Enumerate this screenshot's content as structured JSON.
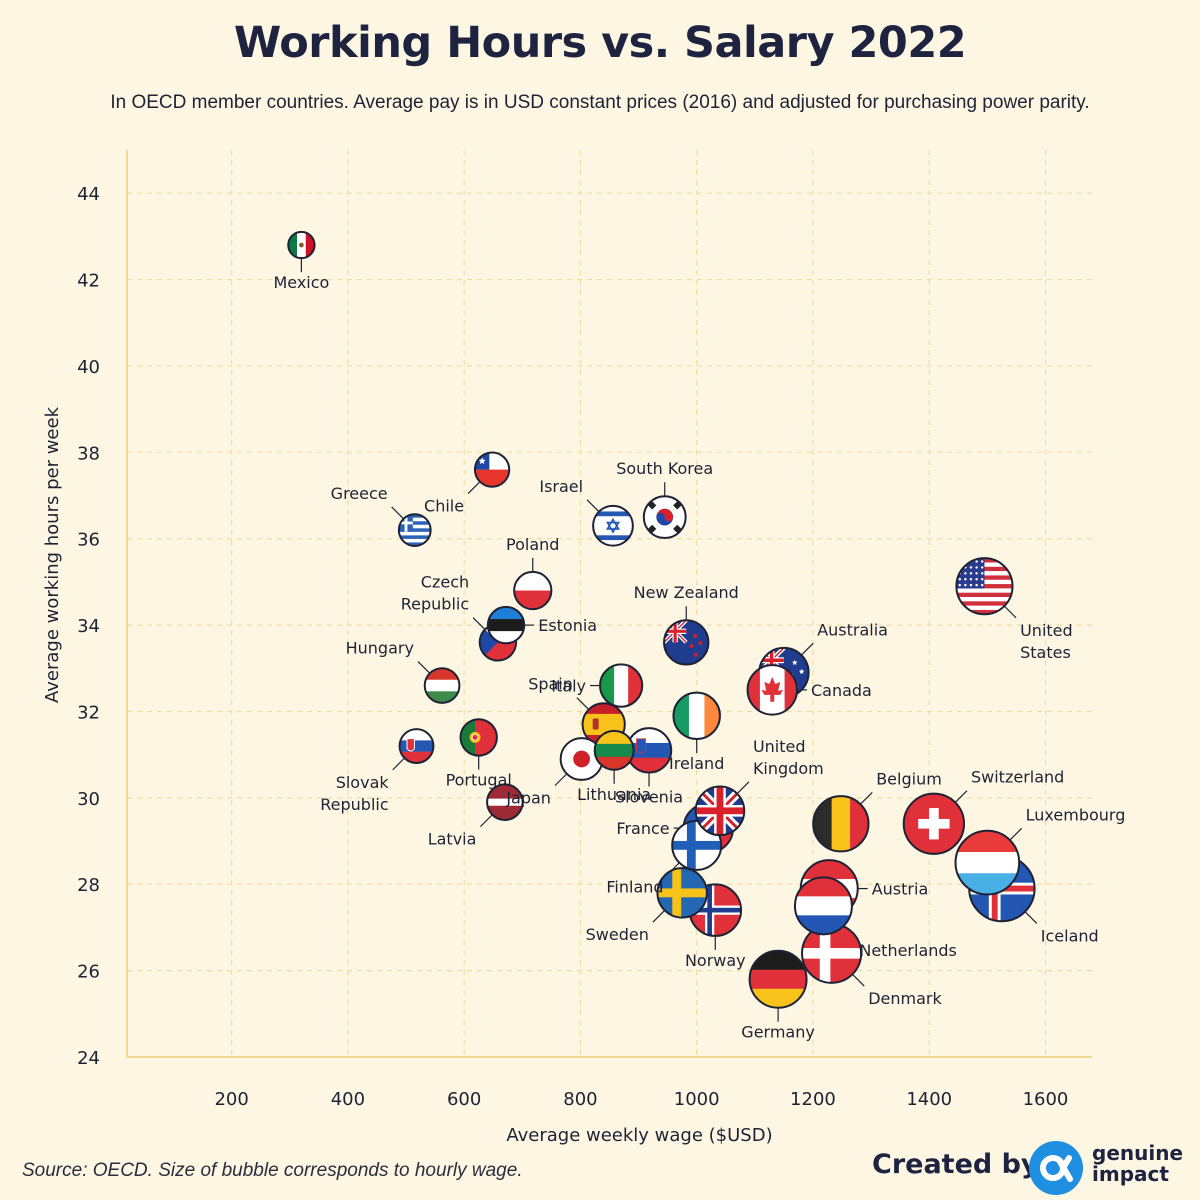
{
  "header": {
    "title": "Working Hours vs. Salary 2022",
    "subtitle": "In OECD member countries. Average pay is in USD constant prices (2016) and adjusted for purchasing power parity."
  },
  "footer": {
    "source": "Source: OECD. Size of bubble corresponds to hourly wage.",
    "created_by": "Created by",
    "logo_line1": "genuine",
    "logo_line2": "impact"
  },
  "colors": {
    "background": "#fdf6e3",
    "grid": "#f2dc9c",
    "axis": "#f0d890",
    "text": "#1e2235",
    "brand_blue": "#1e8fe1"
  },
  "chart_data": {
    "type": "scatter",
    "title": "Working Hours vs. Salary 2022",
    "xlabel": "Average weekly wage ($USD)",
    "ylabel": "Average working hours per week",
    "xlim": [
      20,
      1680
    ],
    "ylim": [
      24,
      45
    ],
    "xticks": [
      200,
      400,
      600,
      800,
      1000,
      1200,
      1400,
      1600
    ],
    "yticks": [
      24,
      26,
      28,
      30,
      32,
      34,
      36,
      38,
      40,
      42,
      44
    ],
    "grid": true,
    "points": [
      {
        "country": "Mexico",
        "label": [
          "Mexico"
        ],
        "x": 320,
        "y": 42.8,
        "hourly": 7.5,
        "flag": "mexico",
        "anchor": "below"
      },
      {
        "country": "Chile",
        "label": [
          "Chile"
        ],
        "x": 648,
        "y": 37.6,
        "hourly": 17,
        "flag": "chile",
        "anchor": "belowleft"
      },
      {
        "country": "Greece",
        "label": [
          "Greece"
        ],
        "x": 515,
        "y": 36.2,
        "hourly": 14,
        "flag": "greece",
        "anchor": "aboveleft"
      },
      {
        "country": "Israel",
        "label": [
          "Israel"
        ],
        "x": 856,
        "y": 36.3,
        "hourly": 23.5,
        "flag": "israel",
        "anchor": "aboveleft"
      },
      {
        "country": "South Korea",
        "label": [
          "South Korea"
        ],
        "x": 945,
        "y": 36.5,
        "hourly": 26,
        "flag": "korea",
        "anchor": "above"
      },
      {
        "country": "Poland",
        "label": [
          "Poland"
        ],
        "x": 718,
        "y": 34.8,
        "hourly": 20.5,
        "flag": "poland",
        "anchor": "above"
      },
      {
        "country": "Czech Republic",
        "label": [
          "Czech",
          "Republic"
        ],
        "x": 658,
        "y": 33.6,
        "hourly": 19.5,
        "flag": "czech",
        "anchor": "aboveleft"
      },
      {
        "country": "Estonia",
        "label": [
          "Estonia"
        ],
        "x": 672,
        "y": 34.0,
        "hourly": 19.5,
        "flag": "estonia",
        "anchor": "right"
      },
      {
        "country": "New Zealand",
        "label": [
          "New Zealand"
        ],
        "x": 982,
        "y": 33.6,
        "hourly": 29,
        "flag": "newzealand",
        "anchor": "above"
      },
      {
        "country": "United States",
        "label": [
          "United",
          "States"
        ],
        "x": 1495,
        "y": 34.9,
        "hourly": 43,
        "flag": "usa",
        "anchor": "belowright"
      },
      {
        "country": "Australia",
        "label": [
          "Australia"
        ],
        "x": 1150,
        "y": 32.9,
        "hourly": 35,
        "flag": "australia",
        "anchor": "aboveright"
      },
      {
        "country": "Canada",
        "label": [
          "Canada"
        ],
        "x": 1130,
        "y": 32.5,
        "hourly": 35,
        "flag": "canada",
        "anchor": "right"
      },
      {
        "country": "Hungary",
        "label": [
          "Hungary"
        ],
        "x": 562,
        "y": 32.6,
        "hourly": 17.5,
        "flag": "hungary",
        "anchor": "aboveleft"
      },
      {
        "country": "Italy",
        "label": [
          "Italy"
        ],
        "x": 870,
        "y": 32.6,
        "hourly": 26.5,
        "flag": "italy",
        "anchor": "left"
      },
      {
        "country": "Ireland",
        "label": [
          "Ireland"
        ],
        "x": 1000,
        "y": 31.9,
        "hourly": 31.5,
        "flag": "ireland",
        "anchor": "below"
      },
      {
        "country": "Spain",
        "label": [
          "Spain"
        ],
        "x": 840,
        "y": 31.7,
        "hourly": 26.5,
        "flag": "spain",
        "anchor": "aboveleft"
      },
      {
        "country": "Slovak Republic",
        "label": [
          "Slovak",
          "Republic"
        ],
        "x": 518,
        "y": 31.2,
        "hourly": 16.5,
        "flag": "slovakia",
        "anchor": "belowleft"
      },
      {
        "country": "Portugal",
        "label": [
          "Portugal"
        ],
        "x": 625,
        "y": 31.4,
        "hourly": 19.5,
        "flag": "portugal",
        "anchor": "below"
      },
      {
        "country": "Japan",
        "label": [
          "Japan"
        ],
        "x": 802,
        "y": 30.9,
        "hourly": 26,
        "flag": "japan",
        "anchor": "belowleft"
      },
      {
        "country": "Lithuania",
        "label": [
          "Lithuania"
        ],
        "x": 858,
        "y": 31.1,
        "hourly": 22.5,
        "flag": "lithuania",
        "anchor": "below"
      },
      {
        "country": "Slovenia",
        "label": [
          "Slovenia"
        ],
        "x": 918,
        "y": 31.1,
        "hourly": 29,
        "flag": "slovenia",
        "anchor": "below"
      },
      {
        "country": "Latvia",
        "label": [
          "Latvia"
        ],
        "x": 670,
        "y": 29.9,
        "hourly": 18.5,
        "flag": "latvia",
        "anchor": "belowleft"
      },
      {
        "country": "United Kingdom",
        "label": [
          "United",
          "Kingdom"
        ],
        "x": 1040,
        "y": 29.7,
        "hourly": 34,
        "flag": "uk",
        "anchor": "aboveright"
      },
      {
        "country": "France",
        "label": [
          "France"
        ],
        "x": 1020,
        "y": 29.3,
        "hourly": 35,
        "flag": "france",
        "anchor": "left"
      },
      {
        "country": "Belgium",
        "label": [
          "Belgium"
        ],
        "x": 1248,
        "y": 29.4,
        "hourly": 42,
        "flag": "belgium",
        "anchor": "aboveright"
      },
      {
        "country": "Switzerland",
        "label": [
          "Switzerland"
        ],
        "x": 1408,
        "y": 29.4,
        "hourly": 48,
        "flag": "switzerland",
        "anchor": "aboveright"
      },
      {
        "country": "Finland",
        "label": [
          "Finland"
        ],
        "x": 1000,
        "y": 28.9,
        "hourly": 34.5,
        "flag": "finland",
        "anchor": "belowleft"
      },
      {
        "country": "Luxembourg",
        "label": [
          "Luxembourg"
        ],
        "x": 1500,
        "y": 28.5,
        "hourly": 52,
        "flag": "luxembourg",
        "anchor": "aboveright"
      },
      {
        "country": "Iceland",
        "label": [
          "Iceland"
        ],
        "x": 1525,
        "y": 27.9,
        "hourly": 54,
        "flag": "iceland",
        "anchor": "belowright"
      },
      {
        "country": "Austria",
        "label": [
          "Austria"
        ],
        "x": 1228,
        "y": 27.9,
        "hourly": 44,
        "flag": "austria",
        "anchor": "right"
      },
      {
        "country": "Netherlands",
        "label": [
          "Netherlands"
        ],
        "x": 1218,
        "y": 27.5,
        "hourly": 44,
        "flag": "netherlands",
        "anchor": "belowright"
      },
      {
        "country": "Sweden",
        "label": [
          "Sweden"
        ],
        "x": 975,
        "y": 27.8,
        "hourly": 35,
        "flag": "sweden",
        "anchor": "belowleft"
      },
      {
        "country": "Norway",
        "label": [
          "Norway"
        ],
        "x": 1032,
        "y": 27.4,
        "hourly": 37.5,
        "flag": "norway",
        "anchor": "below"
      },
      {
        "country": "Denmark",
        "label": [
          "Denmark"
        ],
        "x": 1232,
        "y": 26.4,
        "hourly": 46.5,
        "flag": "denmark",
        "anchor": "belowright"
      },
      {
        "country": "Germany",
        "label": [
          "Germany"
        ],
        "x": 1140,
        "y": 25.8,
        "hourly": 44,
        "flag": "germany",
        "anchor": "below"
      }
    ]
  }
}
